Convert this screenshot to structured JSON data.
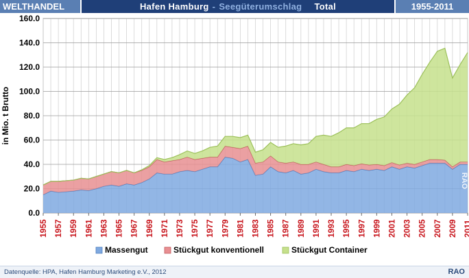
{
  "header": {
    "left": "WELTHANDEL",
    "title_main": "Hafen Hamburg",
    "title_sep": "-",
    "title_sub": "Seegüterumschlag",
    "title_total": "Total",
    "right": "1955-2011"
  },
  "footer": {
    "source": "Datenquelle: HPA, Hafen Hamburg Marketing e.V., 2012",
    "logo": "RAO"
  },
  "watermark": "RAO",
  "colors": {
    "massengut": "#7fa9e0",
    "konventionell": "#e88f92",
    "container": "#c6e08c",
    "header_dark": "#1f3f78",
    "header_light": "#5a7fb3"
  },
  "chart_data": {
    "type": "area",
    "stacked": true,
    "ylabel": "in Mio. t Brutto",
    "xlabel": "",
    "ylim": [
      0,
      160
    ],
    "yticks": [
      "0.0",
      "20.0",
      "40.0",
      "60.0",
      "80.0",
      "100.0",
      "120.0",
      "140.0",
      "160.0"
    ],
    "x": [
      1955,
      1956,
      1957,
      1958,
      1959,
      1960,
      1961,
      1962,
      1963,
      1964,
      1965,
      1966,
      1967,
      1968,
      1969,
      1970,
      1971,
      1972,
      1973,
      1974,
      1975,
      1976,
      1977,
      1978,
      1979,
      1980,
      1981,
      1982,
      1983,
      1984,
      1985,
      1986,
      1987,
      1988,
      1989,
      1990,
      1991,
      1992,
      1993,
      1994,
      1995,
      1996,
      1997,
      1998,
      1999,
      2000,
      2001,
      2002,
      2003,
      2004,
      2005,
      2006,
      2007,
      2008,
      2009,
      2010,
      2011
    ],
    "xtick_labels": [
      "1955",
      "1957",
      "1959",
      "1961",
      "1963",
      "1965",
      "1967",
      "1969",
      "1971",
      "1973",
      "1975",
      "1977",
      "1979",
      "1981",
      "1983",
      "1985",
      "1987",
      "1989",
      "1991",
      "1993",
      "1995",
      "1997",
      "1999",
      "2001",
      "2003",
      "2005",
      "2007",
      "2009",
      "2011"
    ],
    "grid": true,
    "legend_position": "bottom",
    "series": [
      {
        "name": "Massengut",
        "values": [
          15,
          18,
          17,
          17.5,
          18,
          19,
          18.5,
          20,
          22,
          23,
          22,
          24,
          23,
          25,
          28,
          33,
          32,
          32,
          34,
          35,
          34,
          36,
          38,
          38,
          46,
          45,
          42,
          44,
          31,
          32,
          38,
          34,
          33,
          35,
          32,
          33,
          36,
          34,
          33,
          33,
          35,
          34,
          36,
          35,
          36,
          35,
          38,
          36,
          38,
          37,
          39,
          41,
          41,
          41,
          36,
          40,
          40
        ]
      },
      {
        "name": "Stückgut konventionell",
        "values": [
          8,
          8,
          9,
          9,
          9,
          9.5,
          9.5,
          10,
          10,
          11,
          11,
          11,
          10,
          10,
          10,
          11,
          10,
          11,
          10,
          11,
          10,
          9,
          8,
          8,
          9,
          9,
          11,
          11,
          10,
          10,
          9,
          8,
          8,
          7,
          8,
          7,
          6,
          6,
          5,
          5,
          5,
          5,
          4.5,
          4.5,
          4,
          4,
          3.5,
          3.5,
          3,
          3,
          3,
          3,
          3,
          2.5,
          2,
          2,
          2
        ]
      },
      {
        "name": "Stückgut Container",
        "values": [
          0,
          0,
          0,
          0,
          0,
          0,
          0,
          0,
          0,
          0,
          0,
          0,
          0,
          0.5,
          1,
          1.5,
          2,
          2.5,
          4,
          5,
          5,
          6,
          8,
          9,
          8,
          9,
          9,
          9,
          9,
          10,
          11,
          12,
          14,
          15,
          16,
          17,
          21,
          24,
          25,
          28,
          30,
          31,
          33,
          34,
          37,
          40,
          44,
          50,
          56,
          63,
          72,
          80,
          89,
          92,
          73,
          80,
          90
        ]
      }
    ]
  }
}
